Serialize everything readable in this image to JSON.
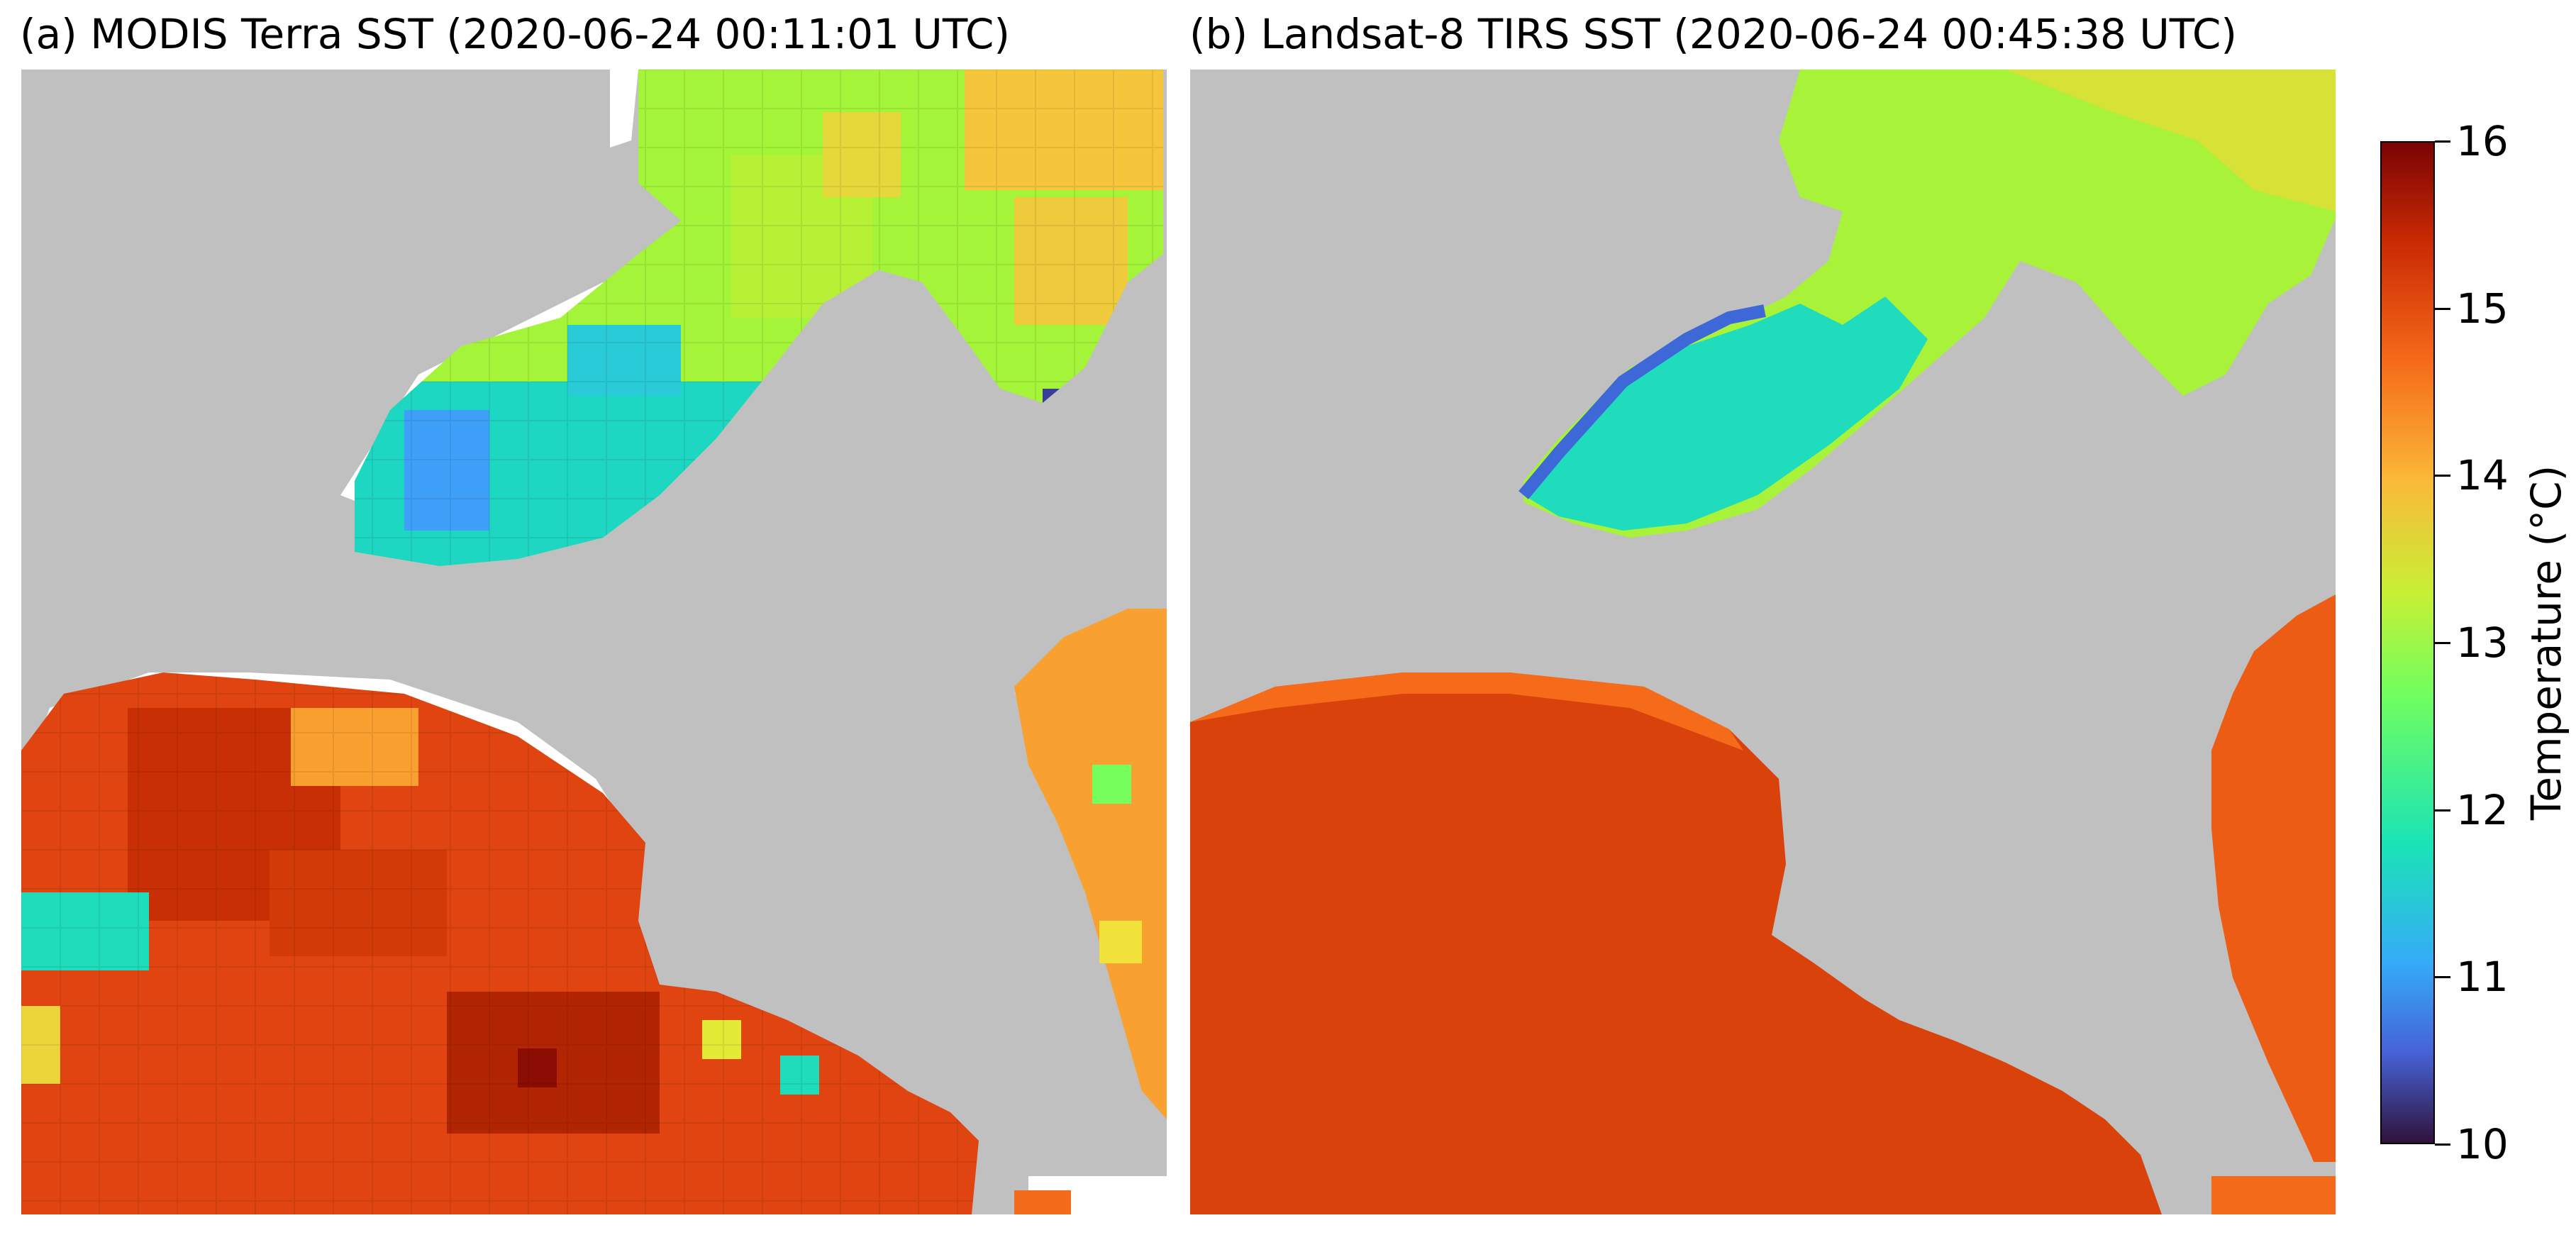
{
  "panels": [
    {
      "title": "(a) MODIS Terra SST (2020-06-24 00:11:01 UTC)"
    },
    {
      "title": "(b) Landsat-8 TIRS SST (2020-06-24 00:45:38 UTC)"
    }
  ],
  "colorbar": {
    "label": "Temperature (°C)",
    "ticks": [
      "16",
      "15",
      "14",
      "13",
      "12",
      "11",
      "10"
    ],
    "range": [
      10,
      16
    ],
    "colormap": "turbo"
  },
  "colors": {
    "land": "#c0c0c0",
    "nodata": "#ffffff",
    "cold": "#30123b",
    "warm": "#7a0403"
  }
}
